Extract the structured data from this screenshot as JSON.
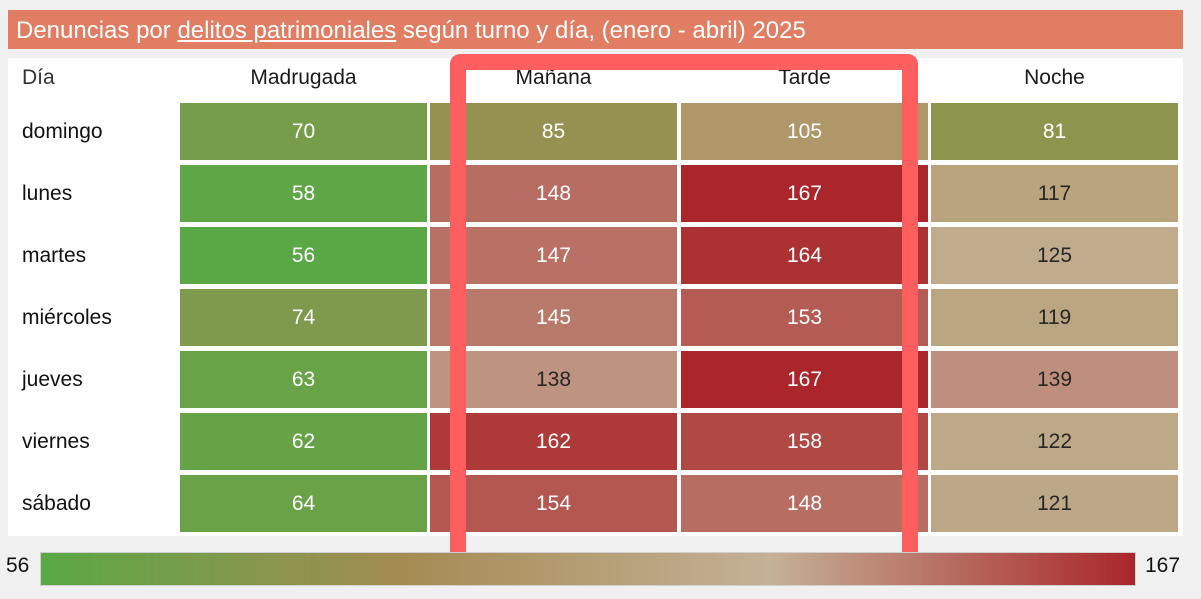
{
  "title": {
    "prefix": "Denuncias por ",
    "underlined": "delitos patrimoniales",
    "suffix": " según turno y día, (enero - abril) 2025"
  },
  "chart_data": {
    "type": "heatmap",
    "title": "Denuncias por delitos patrimoniales según turno y día, (enero - abril) 2025",
    "row_header": "Día",
    "columns": [
      "Madrugada",
      "Mañana",
      "Tarde",
      "Noche"
    ],
    "rows": [
      "domingo",
      "lunes",
      "martes",
      "miércoles",
      "jueves",
      "viernes",
      "sábado"
    ],
    "values": [
      [
        70,
        85,
        105,
        81
      ],
      [
        58,
        148,
        167,
        117
      ],
      [
        56,
        147,
        164,
        125
      ],
      [
        74,
        145,
        153,
        119
      ],
      [
        63,
        138,
        167,
        139
      ],
      [
        62,
        162,
        158,
        122
      ],
      [
        64,
        154,
        148,
        121
      ]
    ],
    "color_scale": {
      "min": 56,
      "max": 167,
      "min_label": "56",
      "max_label": "167",
      "colors": [
        "#5aa845",
        "#a58b53",
        "#c4b196",
        "#aa262a"
      ]
    },
    "highlight_columns": [
      "Mañana",
      "Tarde"
    ],
    "highlight_color": "#ff5e5e"
  }
}
